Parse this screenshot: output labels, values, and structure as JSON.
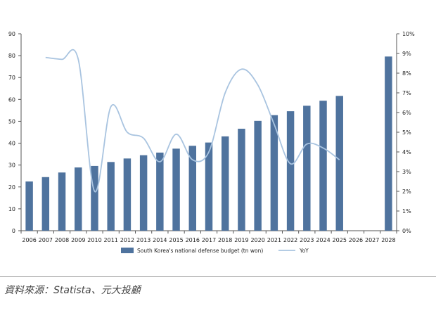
{
  "chart_data": {
    "type": "bar",
    "categories": [
      "2006",
      "2007",
      "2008",
      "2009",
      "2010",
      "2011",
      "2012",
      "2013",
      "2014",
      "2015",
      "2016",
      "2017",
      "2018",
      "2019",
      "2020",
      "2021",
      "2022",
      "2023",
      "2024",
      "2025",
      "2026",
      "2027",
      "2028"
    ],
    "series": [
      {
        "name": "South Korea's national defense budget (tn won)",
        "type": "bar",
        "axis": "left",
        "values": [
          22.5,
          24.5,
          26.6,
          28.9,
          29.6,
          31.4,
          33.0,
          34.5,
          35.7,
          37.5,
          38.8,
          40.3,
          43.1,
          46.6,
          50.2,
          52.8,
          54.6,
          57.1,
          59.4,
          61.6,
          null,
          null,
          79.6
        ]
      },
      {
        "name": "YoY",
        "type": "line",
        "axis": "right",
        "values": [
          null,
          8.8,
          8.7,
          8.7,
          2.0,
          6.3,
          5.0,
          4.7,
          3.5,
          4.9,
          3.6,
          4.0,
          7.0,
          8.2,
          7.4,
          5.4,
          3.4,
          4.4,
          4.2,
          3.6,
          null,
          null,
          null
        ]
      }
    ],
    "ylim_left": [
      0,
      90
    ],
    "yticks_left": [
      "0",
      "10",
      "20",
      "30",
      "40",
      "50",
      "60",
      "70",
      "80",
      "90"
    ],
    "ylim_right": [
      0,
      10
    ],
    "yticks_right": [
      "0%",
      "1%",
      "2%",
      "3%",
      "4%",
      "5%",
      "6%",
      "7%",
      "8%",
      "9%",
      "10%"
    ],
    "grid": false,
    "legend_position": "bottom",
    "colors": {
      "bar": "#4f739e",
      "line": "#a9c4e0",
      "axis": "#555555"
    }
  },
  "source": "資料來源：Statista、元大投顧"
}
